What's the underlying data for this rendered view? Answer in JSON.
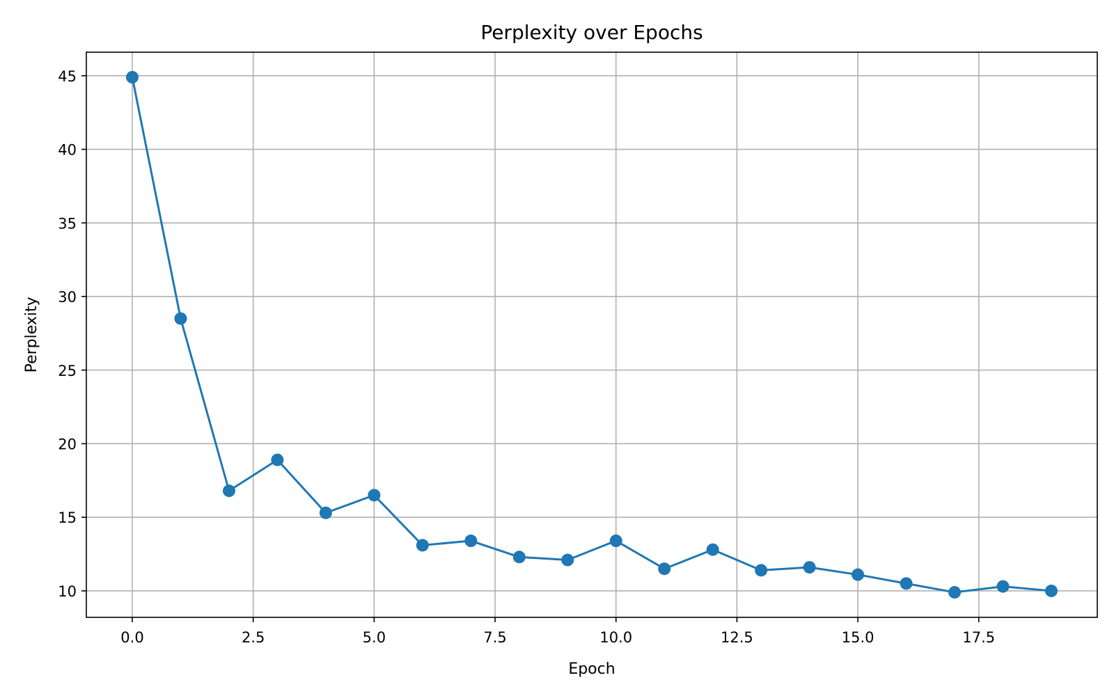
{
  "chart_data": {
    "type": "line",
    "title": "Perplexity over Epochs",
    "xlabel": "Epoch",
    "ylabel": "Perplexity",
    "xlim": [
      -0.95,
      19.95
    ],
    "ylim": [
      8.2,
      46.6
    ],
    "xticks": [
      0.0,
      2.5,
      5.0,
      7.5,
      10.0,
      12.5,
      15.0,
      17.5
    ],
    "xtick_labels": [
      "0.0",
      "2.5",
      "5.0",
      "7.5",
      "10.0",
      "12.5",
      "15.0",
      "17.5"
    ],
    "yticks": [
      10,
      15,
      20,
      25,
      30,
      35,
      40,
      45
    ],
    "ytick_labels": [
      "10",
      "15",
      "20",
      "25",
      "30",
      "35",
      "40",
      "45"
    ],
    "grid": true,
    "series": [
      {
        "name": "Perplexity",
        "color": "#1f77b4",
        "marker": "circle",
        "x": [
          0,
          1,
          2,
          3,
          4,
          5,
          6,
          7,
          8,
          9,
          10,
          11,
          12,
          13,
          14,
          15,
          16,
          17,
          18,
          19
        ],
        "values": [
          44.9,
          28.5,
          16.8,
          18.9,
          15.3,
          16.5,
          13.1,
          13.4,
          12.3,
          12.1,
          13.4,
          11.5,
          12.8,
          11.4,
          11.6,
          11.1,
          10.5,
          9.9,
          10.3,
          10.0
        ]
      }
    ]
  }
}
